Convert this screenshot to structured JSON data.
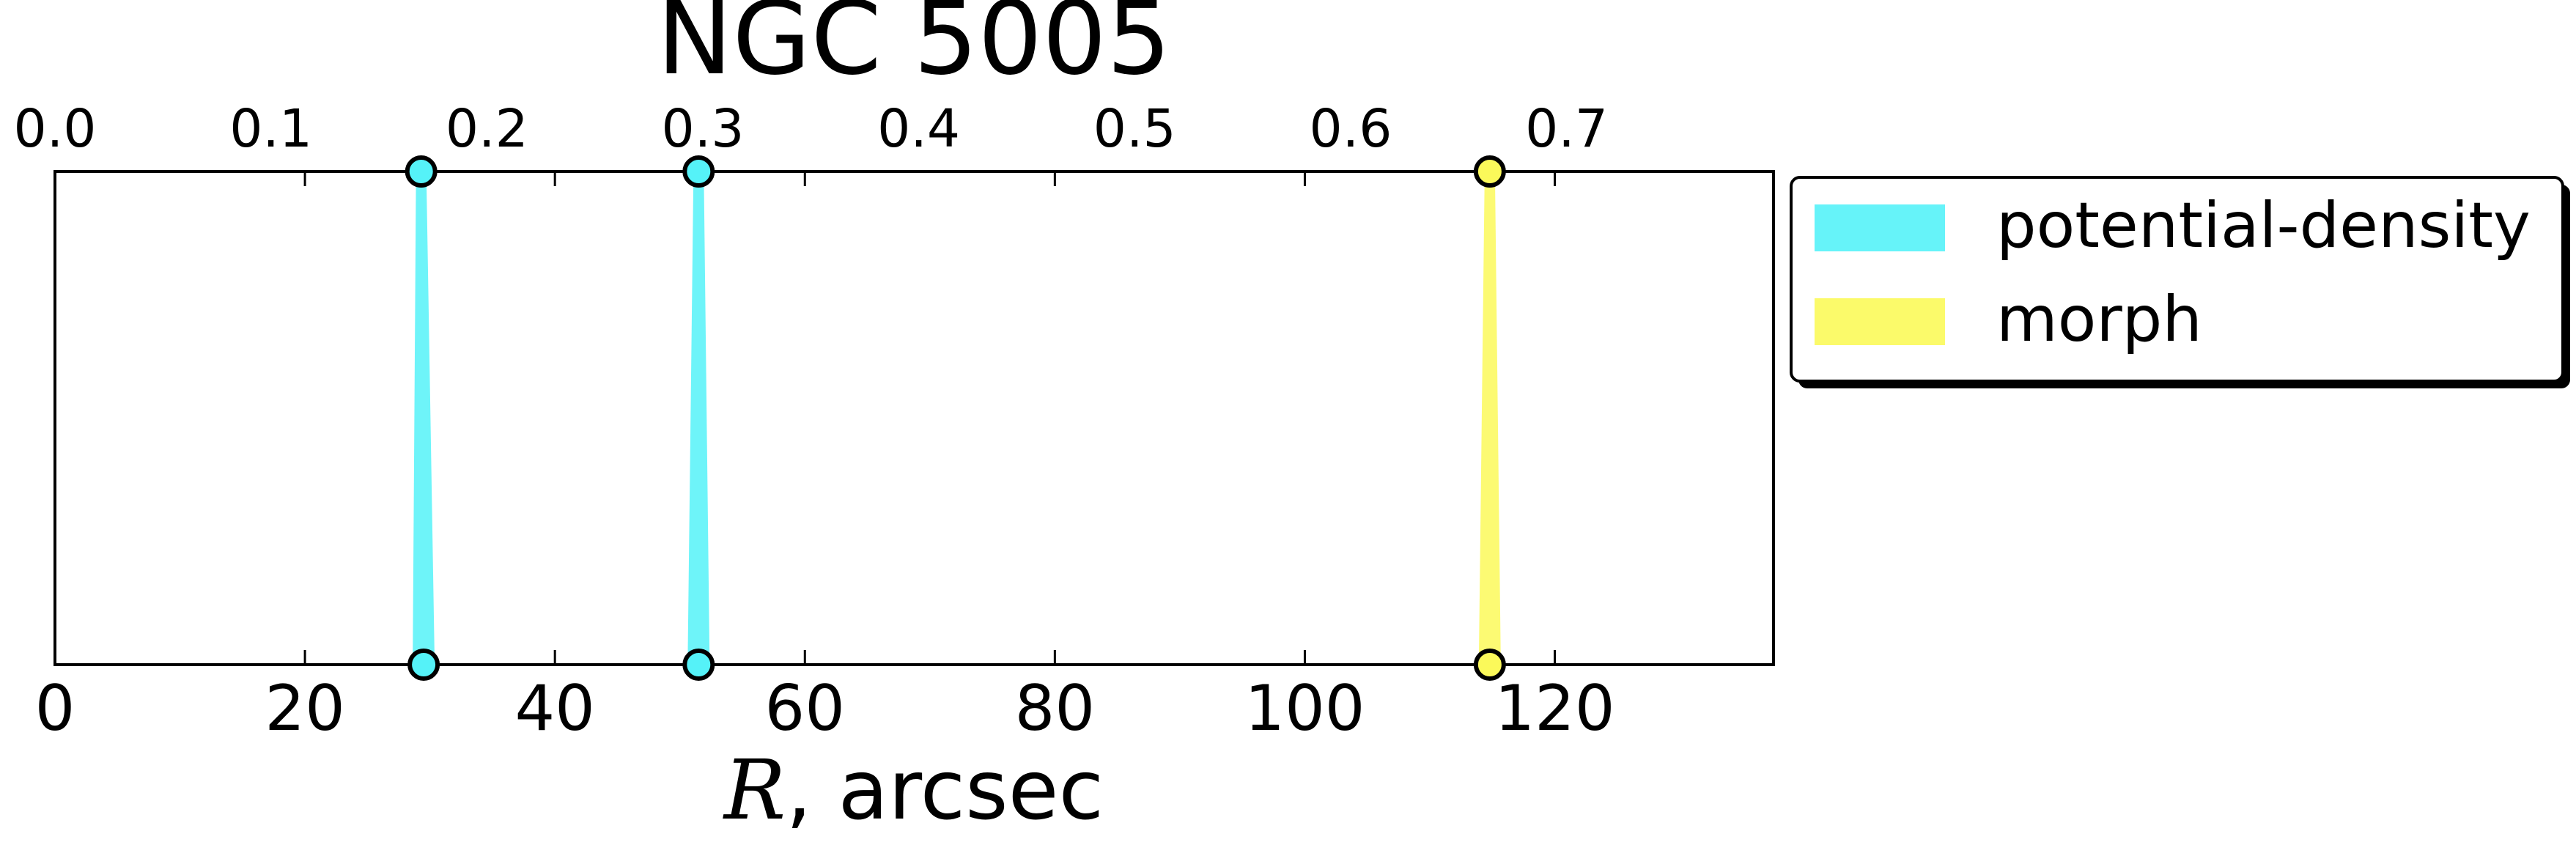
{
  "chart_data": {
    "type": "scatter",
    "title": "NGC 5005",
    "xlabel_symbol": "R",
    "xlabel_rest": ", arcsec",
    "xlim": [
      0,
      137.5
    ],
    "xticks": [
      0,
      20,
      40,
      60,
      80,
      100,
      120
    ],
    "xtick_labels": [
      "0",
      "20",
      "40",
      "60",
      "80",
      "100",
      "120"
    ],
    "top_axis": {
      "ticks": [
        0.0,
        0.1,
        0.2,
        0.3,
        0.4,
        0.5,
        0.6,
        0.7
      ],
      "tick_labels": [
        "0.0",
        "0.1",
        "0.2",
        "0.3",
        "0.4",
        "0.5",
        "0.6",
        "0.7"
      ],
      "scale_ratio": 0.005788
    },
    "grid": false,
    "legend": {
      "placement": "outside-right",
      "entries": [
        {
          "label": "potential-density",
          "color": "#55f2f8"
        },
        {
          "label": "morph",
          "color": "#fbf95a"
        }
      ]
    },
    "series": [
      {
        "name": "potential-density",
        "color": "#55f2f8",
        "markers": [
          {
            "x_top": 29.3,
            "x_bottom": 29.5
          },
          {
            "x_top": 51.5,
            "x_bottom": 51.5
          }
        ]
      },
      {
        "name": "morph",
        "color": "#fbf95a",
        "markers": [
          {
            "x_top": 114.8,
            "x_bottom": 114.8
          }
        ]
      }
    ]
  }
}
